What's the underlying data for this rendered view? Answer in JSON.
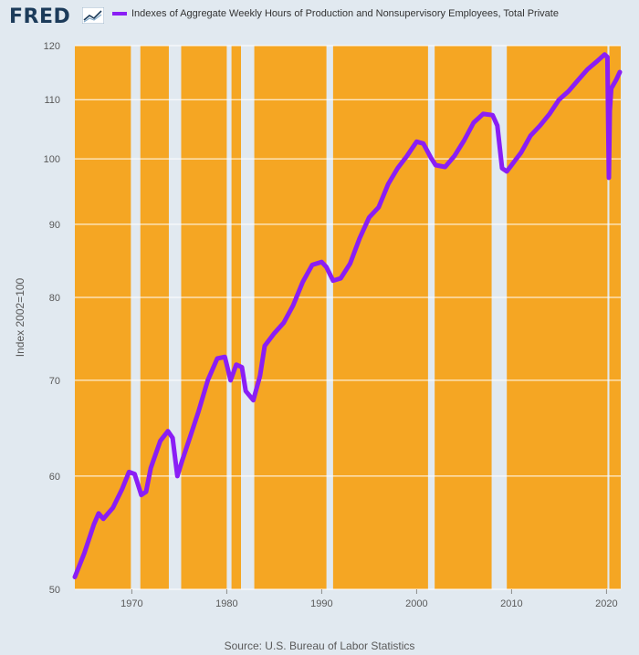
{
  "header": {
    "logo_text": "FRED",
    "legend_label": "Indexes of Aggregate Weekly Hours of Production and Nonsupervisory Employees, Total Private"
  },
  "colors": {
    "series": "#8a1ef5",
    "plot_background": "#f5a623",
    "recession": "#e1e9f0",
    "page_background": "#e1e9f0",
    "logo": "#1c3b5a"
  },
  "source": "Source: U.S. Bureau of Labor Statistics",
  "chart_data": {
    "type": "line",
    "title": "",
    "xlabel": "",
    "ylabel": "Index 2002=100",
    "y_scale": "log",
    "ylim": [
      50,
      120
    ],
    "xlim": [
      1964.0,
      2021.5
    ],
    "yticks": [
      50,
      60,
      70,
      80,
      90,
      100,
      110,
      120
    ],
    "xticks": [
      1970,
      1980,
      1990,
      2000,
      2010,
      2020
    ],
    "grid": "horizontal",
    "legend": "top",
    "recessions": [
      [
        1969.9,
        1970.9
      ],
      [
        1973.9,
        1975.2
      ],
      [
        1980.0,
        1980.5
      ],
      [
        1981.5,
        1982.9
      ],
      [
        1990.5,
        1991.2
      ],
      [
        2001.2,
        2001.9
      ],
      [
        2007.9,
        2009.5
      ],
      [
        2020.1,
        2020.3
      ]
    ],
    "series": [
      {
        "name": "Indexes of Aggregate Weekly Hours of Production and Nonsupervisory Employees, Total Private",
        "x": [
          1964.0,
          1965.0,
          1966.0,
          1966.5,
          1967.0,
          1967.5,
          1968.0,
          1969.0,
          1969.7,
          1970.3,
          1971.0,
          1971.5,
          1972.0,
          1973.0,
          1973.8,
          1974.3,
          1974.8,
          1975.3,
          1976.0,
          1977.0,
          1978.0,
          1979.0,
          1979.8,
          1980.4,
          1981.0,
          1981.6,
          1982.0,
          1982.8,
          1983.5,
          1984.0,
          1985.0,
          1986.0,
          1987.0,
          1988.0,
          1989.0,
          1990.0,
          1990.5,
          1991.2,
          1992.0,
          1993.0,
          1994.0,
          1995.0,
          1996.0,
          1997.0,
          1998.0,
          1999.0,
          2000.0,
          2000.7,
          2001.5,
          2002.0,
          2003.0,
          2004.0,
          2005.0,
          2006.0,
          2007.0,
          2008.0,
          2008.5,
          2009.0,
          2009.5,
          2010.0,
          2011.0,
          2012.0,
          2013.0,
          2014.0,
          2015.0,
          2016.0,
          2017.0,
          2018.0,
          2019.0,
          2019.8,
          2020.1,
          2020.25,
          2020.35,
          2020.5,
          2021.0,
          2021.4
        ],
        "values": [
          51,
          53,
          55.5,
          56.5,
          56,
          56.5,
          57,
          58.8,
          60.4,
          60.2,
          58.2,
          58.5,
          60.8,
          63.5,
          64.5,
          63.8,
          60,
          61.5,
          63.5,
          66.5,
          70,
          72.5,
          72.7,
          70,
          71.8,
          71.5,
          68.8,
          67.8,
          70.5,
          74,
          75.5,
          76.8,
          79,
          82,
          84.3,
          84.7,
          84,
          82.2,
          82.5,
          84.5,
          88,
          91,
          92.5,
          96,
          98.5,
          100.5,
          102.8,
          102.5,
          100.2,
          99,
          98.7,
          100.5,
          103,
          106,
          107.5,
          107.3,
          105.5,
          98.5,
          98,
          99,
          101,
          103.8,
          105.5,
          107.5,
          110,
          111.5,
          113.5,
          115.5,
          117,
          118.3,
          117.8,
          97,
          108,
          112,
          113.5,
          115
        ]
      }
    ]
  }
}
